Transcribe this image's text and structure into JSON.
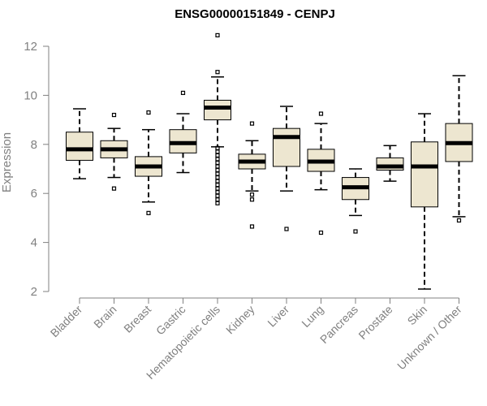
{
  "chart_data": {
    "type": "boxplot",
    "title": "ENSG00000151849 - CENPJ",
    "ylabel": "Expression",
    "ylim": [
      2,
      12.5
    ],
    "yticks": [
      2,
      4,
      6,
      8,
      10,
      12
    ],
    "box_fill": "#ede6d0",
    "categories": [
      "Bladder",
      "Brain",
      "Breast",
      "Gastric",
      "Hematopoietic cells",
      "Kidney",
      "Liver",
      "Lung",
      "Pancreas",
      "Prostate",
      "Skin",
      "Unknown / Other"
    ],
    "boxes": [
      {
        "whisker_low": 6.6,
        "q1": 7.35,
        "median": 7.8,
        "q3": 8.5,
        "whisker_high": 9.45,
        "outliers": []
      },
      {
        "whisker_low": 6.65,
        "q1": 7.45,
        "median": 7.8,
        "q3": 8.15,
        "whisker_high": 8.65,
        "outliers": [
          9.2,
          6.2
        ]
      },
      {
        "whisker_low": 5.65,
        "q1": 6.7,
        "median": 7.1,
        "q3": 7.5,
        "whisker_high": 8.6,
        "outliers": [
          9.3,
          5.2
        ]
      },
      {
        "whisker_low": 6.85,
        "q1": 7.65,
        "median": 8.05,
        "q3": 8.6,
        "whisker_high": 9.25,
        "outliers": [
          10.1
        ]
      },
      {
        "whisker_low": 7.9,
        "q1": 9.0,
        "median": 9.5,
        "q3": 9.8,
        "whisker_high": 10.75,
        "outliers": [
          12.45,
          10.95,
          7.85,
          7.7,
          7.55,
          7.4,
          7.25,
          7.1,
          6.95,
          6.8,
          6.65,
          6.5,
          6.35,
          6.2,
          6.05,
          5.9,
          5.75,
          5.6
        ]
      },
      {
        "whisker_low": 6.1,
        "q1": 7.0,
        "median": 7.3,
        "q3": 7.6,
        "whisker_high": 8.15,
        "outliers": [
          8.85,
          5.95,
          5.75,
          4.65
        ]
      },
      {
        "whisker_low": 6.1,
        "q1": 7.1,
        "median": 8.3,
        "q3": 8.65,
        "whisker_high": 9.55,
        "outliers": [
          4.55
        ]
      },
      {
        "whisker_low": 6.15,
        "q1": 6.9,
        "median": 7.3,
        "q3": 7.8,
        "whisker_high": 8.85,
        "outliers": [
          9.25,
          4.4
        ]
      },
      {
        "whisker_low": 5.1,
        "q1": 5.75,
        "median": 6.25,
        "q3": 6.65,
        "whisker_high": 7.0,
        "outliers": [
          4.45
        ]
      },
      {
        "whisker_low": 6.5,
        "q1": 6.95,
        "median": 7.1,
        "q3": 7.45,
        "whisker_high": 7.95,
        "outliers": []
      },
      {
        "whisker_low": 2.1,
        "q1": 5.45,
        "median": 7.1,
        "q3": 8.1,
        "whisker_high": 9.25,
        "outliers": []
      },
      {
        "whisker_low": 5.05,
        "q1": 7.3,
        "median": 8.05,
        "q3": 8.85,
        "whisker_high": 10.8,
        "outliers": [
          4.9
        ]
      }
    ]
  }
}
